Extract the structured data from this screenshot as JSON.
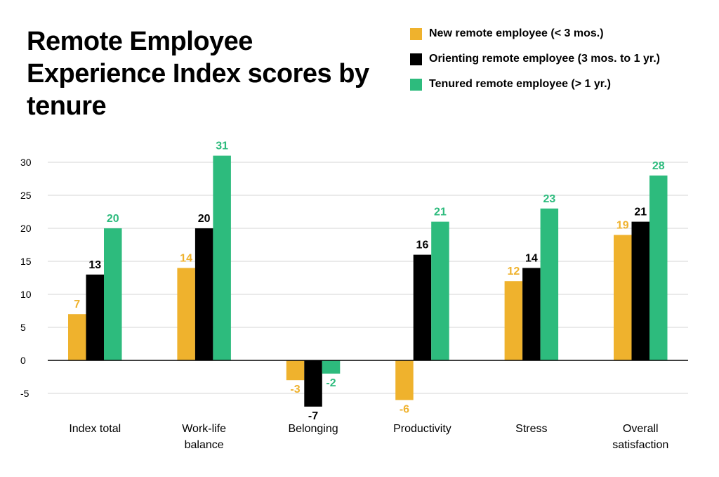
{
  "chart_data": {
    "type": "bar",
    "title": "Remote Employee Experience Index scores by tenure",
    "categories": [
      [
        "Index total"
      ],
      [
        "Work-life",
        "balance"
      ],
      [
        "Belonging"
      ],
      [
        "Productivity"
      ],
      [
        "Stress"
      ],
      [
        "Overall",
        "satisfaction"
      ]
    ],
    "series": [
      {
        "name": "New remote employee  (< 3 mos.)",
        "color": "#EFB22D",
        "values": [
          7,
          14,
          -3,
          -6,
          12,
          19
        ]
      },
      {
        "name": "Orienting remote employee (3 mos. to 1 yr.)",
        "color": "#000000",
        "values": [
          13,
          20,
          -7,
          16,
          14,
          21
        ]
      },
      {
        "name": "Tenured remote employee (> 1 yr.)",
        "color": "#2DBB7D",
        "values": [
          20,
          31,
          -2,
          21,
          23,
          28
        ]
      }
    ],
    "display_values": [
      [
        7,
        14,
        -3,
        -6,
        12,
        19
      ],
      [
        13,
        20,
        -7,
        16,
        14,
        21
      ],
      [
        20,
        31,
        -2,
        21,
        23,
        28
      ]
    ],
    "yticks": [
      -5,
      0,
      5,
      10,
      15,
      20,
      25,
      30
    ],
    "ylim": [
      -6,
      33
    ],
    "xlabel": "",
    "ylabel": "",
    "grid": true,
    "legend_position": "top-right"
  }
}
